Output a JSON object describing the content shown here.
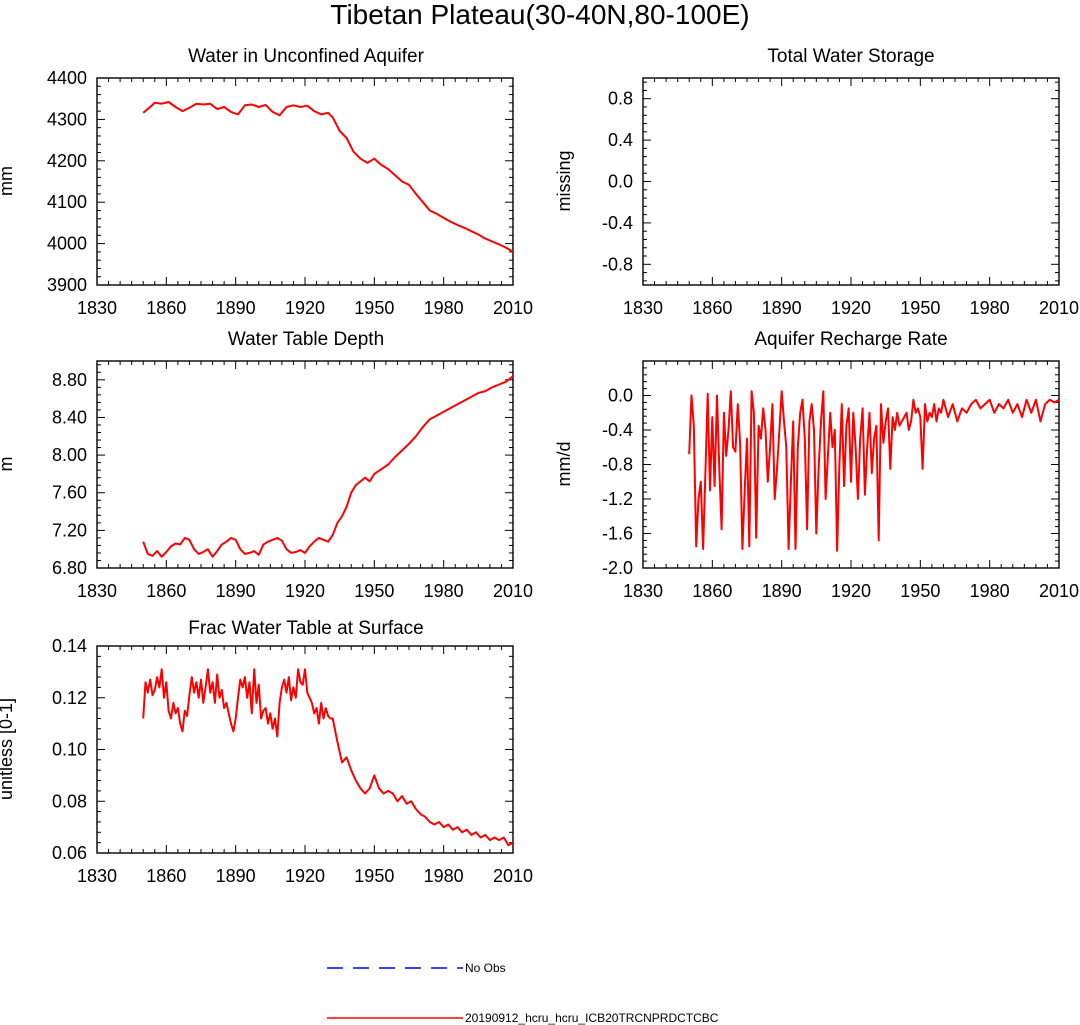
{
  "figure": {
    "title": "Tibetan Plateau(30-40N,80-100E)"
  },
  "colors": {
    "model_line": "#ff0000",
    "obs_line": "#0000ff",
    "axis": "#000000"
  },
  "legend": {
    "obs_label": "No Obs",
    "model_label": "20190912_hcru_hcru_ICB20TRCNPRDCTCBC"
  },
  "chart_data": [
    {
      "id": "wa",
      "type": "line",
      "title": "Water in Unconfined Aquifer",
      "ylabel": "mm",
      "xlim": [
        1830,
        2010
      ],
      "ylim": [
        3900,
        4400
      ],
      "xticks": [
        1830,
        1860,
        1890,
        1920,
        1950,
        1980,
        2010
      ],
      "xtick_labels": [
        "1830",
        "1860",
        "1890",
        "1920",
        "1950",
        "1980",
        "2010"
      ],
      "yticks": [
        3900,
        4000,
        4100,
        4200,
        4300,
        4400
      ],
      "ytick_labels": [
        "3900",
        "4000",
        "4100",
        "4200",
        "4300",
        "4400"
      ],
      "series": [
        {
          "name": "20190912_hcru_hcru_ICB20TRCNPRDCTCBC",
          "x": [
            1850,
            1853,
            1855,
            1858,
            1861,
            1864,
            1867,
            1870,
            1873,
            1876,
            1879,
            1882,
            1885,
            1888,
            1891,
            1894,
            1897,
            1900,
            1903,
            1906,
            1909,
            1912,
            1915,
            1918,
            1921,
            1924,
            1927,
            1930,
            1932,
            1935,
            1938,
            1941,
            1944,
            1947,
            1950,
            1953,
            1956,
            1959,
            1962,
            1965,
            1968,
            1971,
            1974,
            1977,
            1980,
            1983,
            1986,
            1989,
            1992,
            1995,
            1998,
            2001,
            2004,
            2007,
            2010
          ],
          "y": [
            4316,
            4330,
            4340,
            4338,
            4342,
            4330,
            4320,
            4328,
            4338,
            4336,
            4338,
            4325,
            4330,
            4318,
            4312,
            4334,
            4336,
            4330,
            4335,
            4318,
            4310,
            4330,
            4334,
            4330,
            4333,
            4320,
            4312,
            4316,
            4305,
            4272,
            4255,
            4222,
            4205,
            4195,
            4205,
            4190,
            4180,
            4165,
            4150,
            4142,
            4120,
            4100,
            4080,
            4072,
            4062,
            4053,
            4045,
            4038,
            4030,
            4022,
            4012,
            4005,
            3998,
            3990,
            3980
          ]
        }
      ]
    },
    {
      "id": "tws",
      "type": "line",
      "title": "Total Water Storage",
      "ylabel": "missing",
      "xlim": [
        1830,
        2010
      ],
      "ylim": [
        -1.0,
        1.0
      ],
      "xticks": [
        1830,
        1860,
        1890,
        1920,
        1950,
        1980,
        2010
      ],
      "xtick_labels": [
        "1830",
        "1860",
        "1890",
        "1920",
        "1950",
        "1980",
        "2010"
      ],
      "yticks": [
        -0.8,
        -0.4,
        0.0,
        0.4,
        0.8
      ],
      "ytick_labels": [
        "-0.8",
        "-0.4",
        "0.0",
        "0.4",
        "0.8"
      ],
      "series": []
    },
    {
      "id": "wtd",
      "type": "line",
      "title": "Water Table Depth",
      "ylabel": "m",
      "xlim": [
        1830,
        2010
      ],
      "ylim": [
        6.8,
        9.0
      ],
      "xticks": [
        1830,
        1860,
        1890,
        1920,
        1950,
        1980,
        2010
      ],
      "xtick_labels": [
        "1830",
        "1860",
        "1890",
        "1920",
        "1950",
        "1980",
        "2010"
      ],
      "yticks": [
        6.8,
        7.2,
        7.6,
        8.0,
        8.4,
        8.8
      ],
      "ytick_labels": [
        "6.80",
        "7.20",
        "7.60",
        "8.00",
        "8.40",
        "8.80"
      ],
      "series": [
        {
          "name": "20190912_hcru_hcru_ICB20TRCNPRDCTCBC",
          "x": [
            1850,
            1852,
            1854,
            1856,
            1858,
            1860,
            1862,
            1864,
            1866,
            1868,
            1870,
            1872,
            1874,
            1876,
            1878,
            1880,
            1882,
            1884,
            1886,
            1888,
            1890,
            1892,
            1894,
            1896,
            1898,
            1900,
            1902,
            1904,
            1906,
            1908,
            1910,
            1912,
            1914,
            1916,
            1918,
            1920,
            1922,
            1924,
            1926,
            1928,
            1930,
            1932,
            1934,
            1936,
            1938,
            1940,
            1942,
            1944,
            1946,
            1948,
            1950,
            1953,
            1956,
            1959,
            1962,
            1965,
            1968,
            1971,
            1974,
            1977,
            1980,
            1983,
            1986,
            1989,
            1992,
            1995,
            1998,
            2001,
            2004,
            2007,
            2010
          ],
          "y": [
            7.08,
            6.95,
            6.93,
            6.98,
            6.92,
            6.97,
            7.03,
            7.06,
            7.05,
            7.12,
            7.1,
            7.0,
            6.95,
            6.97,
            7.0,
            6.92,
            6.98,
            7.05,
            7.08,
            7.12,
            7.1,
            7.0,
            6.95,
            6.96,
            6.98,
            6.94,
            7.05,
            7.08,
            7.1,
            7.12,
            7.09,
            7.0,
            6.96,
            6.97,
            6.99,
            6.96,
            7.03,
            7.08,
            7.12,
            7.1,
            7.08,
            7.15,
            7.28,
            7.35,
            7.45,
            7.6,
            7.68,
            7.72,
            7.76,
            7.72,
            7.8,
            7.85,
            7.9,
            7.98,
            8.05,
            8.12,
            8.2,
            8.3,
            8.38,
            8.42,
            8.46,
            8.5,
            8.54,
            8.58,
            8.62,
            8.66,
            8.68,
            8.72,
            8.75,
            8.78,
            8.84
          ]
        }
      ]
    },
    {
      "id": "arr",
      "type": "line",
      "title": "Aquifer Recharge Rate",
      "ylabel": "mm/d",
      "xlim": [
        1830,
        2010
      ],
      "ylim": [
        -2.0,
        0.4
      ],
      "xticks": [
        1830,
        1860,
        1890,
        1920,
        1950,
        1980,
        2010
      ],
      "xtick_labels": [
        "1830",
        "1860",
        "1890",
        "1920",
        "1950",
        "1980",
        "2010"
      ],
      "yticks": [
        -2.0,
        -1.6,
        -1.2,
        -0.8,
        -0.4,
        0.0
      ],
      "ytick_labels": [
        "-2.0",
        "-1.6",
        "-1.2",
        "-0.8",
        "-0.4",
        "0.0"
      ],
      "series": [
        {
          "name": "20190912_hcru_hcru_ICB20TRCNPRDCTCBC",
          "x": [
            1850,
            1851,
            1852,
            1853,
            1854,
            1855,
            1856,
            1857,
            1858,
            1859,
            1860,
            1861,
            1862,
            1863,
            1864,
            1865,
            1866,
            1867,
            1868,
            1869,
            1870,
            1871,
            1872,
            1873,
            1874,
            1875,
            1876,
            1877,
            1878,
            1879,
            1880,
            1881,
            1882,
            1883,
            1884,
            1885,
            1886,
            1887,
            1888,
            1889,
            1890,
            1891,
            1892,
            1893,
            1894,
            1895,
            1896,
            1897,
            1898,
            1899,
            1900,
            1901,
            1902,
            1903,
            1904,
            1905,
            1906,
            1907,
            1908,
            1909,
            1910,
            1911,
            1912,
            1913,
            1914,
            1915,
            1916,
            1917,
            1918,
            1919,
            1920,
            1921,
            1922,
            1923,
            1924,
            1925,
            1926,
            1927,
            1928,
            1929,
            1930,
            1931,
            1932,
            1933,
            1934,
            1935,
            1936,
            1937,
            1938,
            1939,
            1940,
            1941,
            1942,
            1943,
            1944,
            1945,
            1946,
            1947,
            1948,
            1949,
            1950,
            1951,
            1952,
            1953,
            1954,
            1955,
            1956,
            1957,
            1958,
            1959,
            1960,
            1962,
            1964,
            1966,
            1968,
            1970,
            1972,
            1974,
            1976,
            1978,
            1980,
            1982,
            1984,
            1986,
            1988,
            1990,
            1992,
            1994,
            1996,
            1998,
            2000,
            2002,
            2004,
            2006,
            2008,
            2010
          ],
          "y": [
            -0.68,
            0.0,
            -0.35,
            -1.75,
            -1.2,
            -1.0,
            -1.78,
            -0.9,
            0.02,
            -1.1,
            -0.25,
            -1.05,
            0.0,
            -0.85,
            -1.55,
            -0.2,
            -0.7,
            -0.4,
            0.05,
            -0.6,
            -0.65,
            -0.1,
            -0.55,
            -1.78,
            -1.1,
            -0.5,
            -1.75,
            0.05,
            -0.2,
            -1.65,
            -0.35,
            -0.5,
            -0.15,
            -0.4,
            -1.0,
            -0.6,
            -0.1,
            -1.2,
            -0.85,
            -0.4,
            0.05,
            -0.3,
            -0.6,
            -1.78,
            -1.0,
            -0.3,
            -1.78,
            -0.6,
            -0.2,
            -0.05,
            -0.5,
            -1.55,
            -0.3,
            -0.1,
            -0.4,
            -1.6,
            -0.85,
            -0.3,
            0.05,
            -1.2,
            -0.7,
            -0.2,
            -0.6,
            -0.4,
            -1.8,
            -0.8,
            -0.1,
            -1.05,
            -0.35,
            -0.15,
            -1.0,
            -0.2,
            -0.6,
            -1.2,
            -0.5,
            -0.15,
            -1.15,
            -0.6,
            -0.2,
            -0.9,
            -0.5,
            -0.35,
            -1.68,
            -0.1,
            -0.55,
            -0.3,
            -0.15,
            -0.85,
            -0.25,
            -0.4,
            -0.2,
            -0.35,
            -0.3,
            -0.25,
            -0.2,
            -0.4,
            -0.3,
            -0.05,
            -0.2,
            -0.15,
            -0.25,
            -0.85,
            -0.1,
            -0.3,
            -0.2,
            -0.25,
            -0.1,
            -0.3,
            -0.15,
            -0.2,
            -0.05,
            -0.25,
            -0.1,
            -0.3,
            -0.15,
            -0.2,
            -0.1,
            -0.05,
            -0.15,
            -0.1,
            -0.05,
            -0.2,
            -0.1,
            -0.15,
            -0.05,
            -0.2,
            -0.1,
            -0.25,
            -0.05,
            -0.2,
            -0.05,
            -0.3,
            -0.1,
            -0.05,
            -0.08,
            -0.05
          ]
        }
      ]
    },
    {
      "id": "fwt",
      "type": "line",
      "title": "Frac Water Table at Surface",
      "ylabel": "unitless [0-1]",
      "xlim": [
        1830,
        2010
      ],
      "ylim": [
        0.06,
        0.14
      ],
      "xticks": [
        1830,
        1860,
        1890,
        1920,
        1950,
        1980,
        2010
      ],
      "xtick_labels": [
        "1830",
        "1860",
        "1890",
        "1920",
        "1950",
        "1980",
        "2010"
      ],
      "yticks": [
        0.06,
        0.08,
        0.1,
        0.12,
        0.14
      ],
      "ytick_labels": [
        "0.06",
        "0.08",
        "0.10",
        "0.12",
        "0.14"
      ],
      "series": [
        {
          "name": "20190912_hcru_hcru_ICB20TRCNPRDCTCBC",
          "x": [
            1850,
            1851,
            1852,
            1853,
            1854,
            1855,
            1856,
            1857,
            1858,
            1859,
            1860,
            1861,
            1862,
            1863,
            1864,
            1865,
            1866,
            1867,
            1868,
            1869,
            1870,
            1871,
            1872,
            1873,
            1874,
            1875,
            1876,
            1877,
            1878,
            1879,
            1880,
            1881,
            1882,
            1883,
            1884,
            1885,
            1886,
            1887,
            1888,
            1889,
            1890,
            1891,
            1892,
            1893,
            1894,
            1895,
            1896,
            1897,
            1898,
            1899,
            1900,
            1901,
            1902,
            1903,
            1904,
            1905,
            1906,
            1907,
            1908,
            1909,
            1910,
            1911,
            1912,
            1913,
            1914,
            1915,
            1916,
            1917,
            1918,
            1919,
            1920,
            1921,
            1922,
            1923,
            1924,
            1925,
            1926,
            1927,
            1928,
            1929,
            1930,
            1931,
            1932,
            1934,
            1936,
            1938,
            1940,
            1942,
            1944,
            1946,
            1948,
            1950,
            1952,
            1954,
            1956,
            1958,
            1960,
            1962,
            1964,
            1966,
            1968,
            1970,
            1972,
            1974,
            1976,
            1978,
            1980,
            1982,
            1984,
            1986,
            1988,
            1990,
            1992,
            1994,
            1996,
            1998,
            2000,
            2002,
            2004,
            2006,
            2008,
            2010
          ],
          "y": [
            0.112,
            0.126,
            0.122,
            0.127,
            0.121,
            0.123,
            0.128,
            0.124,
            0.131,
            0.12,
            0.126,
            0.115,
            0.112,
            0.118,
            0.114,
            0.116,
            0.11,
            0.107,
            0.115,
            0.113,
            0.121,
            0.128,
            0.122,
            0.126,
            0.12,
            0.127,
            0.118,
            0.124,
            0.131,
            0.122,
            0.126,
            0.118,
            0.129,
            0.12,
            0.123,
            0.116,
            0.118,
            0.114,
            0.11,
            0.107,
            0.112,
            0.12,
            0.127,
            0.124,
            0.128,
            0.12,
            0.126,
            0.114,
            0.131,
            0.118,
            0.125,
            0.112,
            0.115,
            0.116,
            0.11,
            0.114,
            0.108,
            0.112,
            0.105,
            0.118,
            0.124,
            0.127,
            0.122,
            0.128,
            0.119,
            0.124,
            0.12,
            0.131,
            0.126,
            0.125,
            0.131,
            0.122,
            0.12,
            0.118,
            0.114,
            0.116,
            0.11,
            0.118,
            0.112,
            0.116,
            0.113,
            0.112,
            0.112,
            0.103,
            0.095,
            0.097,
            0.092,
            0.088,
            0.085,
            0.083,
            0.085,
            0.09,
            0.085,
            0.083,
            0.084,
            0.083,
            0.08,
            0.082,
            0.079,
            0.08,
            0.077,
            0.075,
            0.074,
            0.072,
            0.071,
            0.072,
            0.07,
            0.071,
            0.069,
            0.07,
            0.068,
            0.069,
            0.067,
            0.068,
            0.066,
            0.067,
            0.065,
            0.066,
            0.065,
            0.066,
            0.063,
            0.064
          ]
        }
      ]
    }
  ]
}
